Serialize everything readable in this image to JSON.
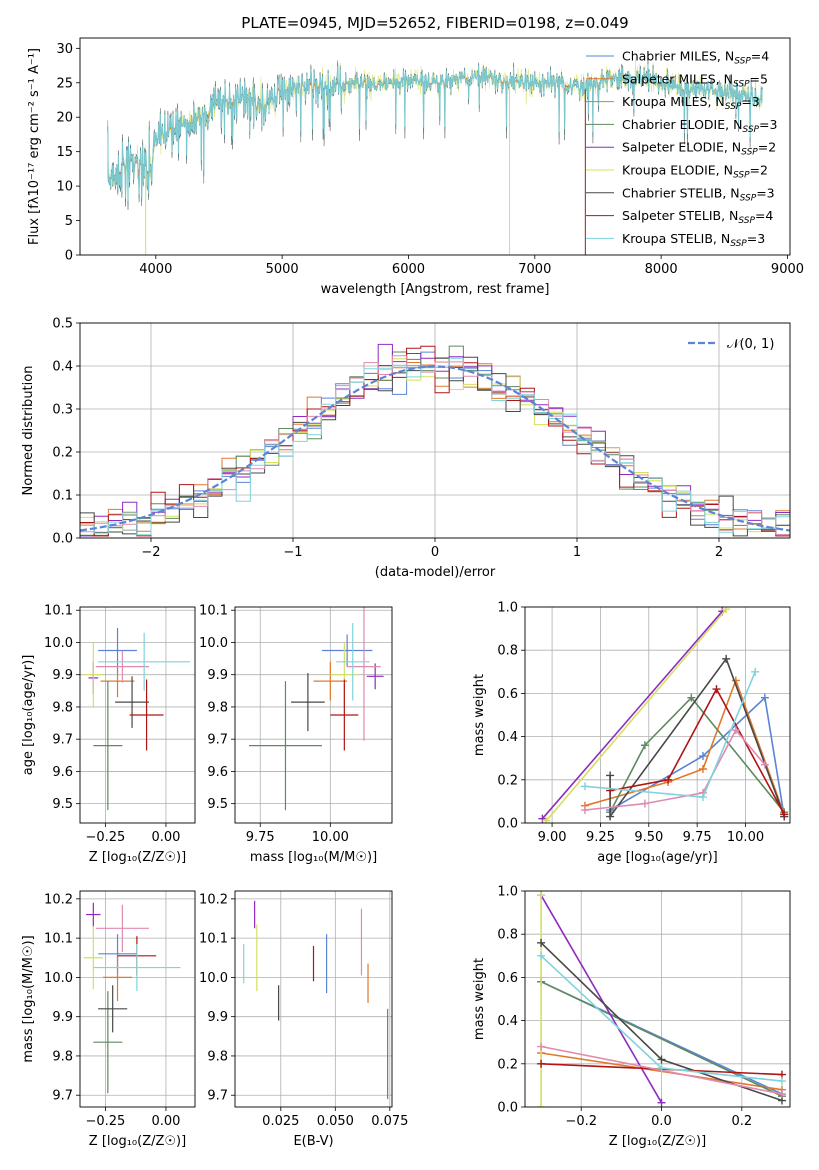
{
  "figure_title": "PLATE=0945, MJD=52652, FIBERID=0198, z=0.049",
  "colors": {
    "c0": "#5b84d6",
    "c1": "#e0792b",
    "c2": "#5f8a5f",
    "c3": "#8e2bc0",
    "c4": "#d4e060",
    "c5": "#484848",
    "c6": "#b01515",
    "c7": "#e08ab0",
    "c8": "#7fd3dc"
  },
  "chart_data": [
    {
      "id": "spectrum",
      "type": "line",
      "xlabel": "wavelength [Angstrom, rest frame]",
      "ylabel": "Flux [fλ10⁻¹⁷ erg cm⁻² s⁻¹ A⁻¹]",
      "xlim": [
        3400,
        9020
      ],
      "ylim": [
        0,
        31.5
      ],
      "xticks": [
        4000,
        5000,
        6000,
        7000,
        8000,
        9000
      ],
      "yticks": [
        0,
        5,
        10,
        15,
        20,
        25,
        30
      ],
      "grid": false,
      "legend_position": "top-right",
      "spectrum_anchors": {
        "x": [
          3620,
          3700,
          3800,
          3900,
          3960,
          4000,
          4100,
          4200,
          4300,
          4400,
          4500,
          4700,
          4860,
          5000,
          5200,
          5400,
          5600,
          5800,
          6000,
          6200,
          6400,
          6600,
          6800,
          7000,
          7200,
          7400,
          7600,
          7800,
          8000,
          8200,
          8400,
          8600,
          8800
        ],
        "y": [
          11,
          12,
          13.5,
          13,
          12,
          17,
          18,
          19,
          19.5,
          20.5,
          22,
          23,
          21,
          24,
          24.5,
          24.5,
          25,
          24.5,
          25.5,
          25,
          25.5,
          26,
          25,
          25,
          25,
          24,
          26,
          25.5,
          25,
          24,
          24,
          23.5,
          22.5
        ]
      },
      "series": [
        {
          "name": "Chabrier MILES, N_SSP=4",
          "label_main": "Chabrier MILES, N",
          "label_sub": "SSP",
          "label_tail": "=4",
          "color": "c0"
        },
        {
          "name": "Salpeter MILES, N_SSP=5",
          "label_main": "Salpeter MILES, N",
          "label_sub": "SSP",
          "label_tail": "=5",
          "color": "c1"
        },
        {
          "name": "Kroupa MILES, N_SSP=3",
          "label_main": "Kroupa MILES, N",
          "label_sub": "SSP",
          "label_tail": "=3",
          "color": "c1"
        },
        {
          "name": "Chabrier ELODIE, N_SSP=3",
          "label_main": "Chabrier ELODIE, N",
          "label_sub": "SSP",
          "label_tail": "=3",
          "color": "c2"
        },
        {
          "name": "Salpeter ELODIE, N_SSP=2",
          "label_main": "Salpeter ELODIE, N",
          "label_sub": "SSP",
          "label_tail": "=2",
          "color": "c3"
        },
        {
          "name": "Kroupa ELODIE, N_SSP=2",
          "label_main": "Kroupa ELODIE, N",
          "label_sub": "SSP",
          "label_tail": "=2",
          "color": "c4"
        },
        {
          "name": "Chabrier STELIB, N_SSP=3",
          "label_main": "Chabrier STELIB, N",
          "label_sub": "SSP",
          "label_tail": "=3",
          "color": "c5"
        },
        {
          "name": "Salpeter STELIB, N_SSP=4",
          "label_main": "Salpeter STELIB, N",
          "label_sub": "SSP",
          "label_tail": "=4",
          "color": "c6"
        },
        {
          "name": "Kroupa STELIB, N_SSP=3",
          "label_main": "Kroupa STELIB, N",
          "label_sub": "SSP",
          "label_tail": "=3",
          "color": "c8"
        }
      ],
      "cutoffs": [
        {
          "x": 3920,
          "color": "c4"
        },
        {
          "x": 6800,
          "color": "c4"
        },
        {
          "x": 7400,
          "color": "c6"
        }
      ]
    },
    {
      "id": "residuals",
      "type": "line",
      "xlabel": "(data-model)/error",
      "ylabel": "Normed distribution",
      "xlim": [
        -2.5,
        2.5
      ],
      "ylim": [
        0,
        0.5
      ],
      "xticks": [
        -2,
        -1,
        0,
        1,
        2
      ],
      "yticks": [
        0.0,
        0.1,
        0.2,
        0.3,
        0.4,
        0.5
      ],
      "grid": true,
      "legend_position": "top-right",
      "reference": {
        "name": "N(0,1)",
        "label": "𝒩(0, 1)",
        "color": "c0",
        "style": "dashed"
      },
      "bin_width": 0.1,
      "hist_colors": [
        "c0",
        "c1",
        "c2",
        "c3",
        "c4",
        "c5",
        "c6",
        "c7",
        "c8"
      ]
    },
    {
      "id": "age-vs-Z",
      "type": "scatter",
      "xlabel": "Z [log₁₀(Z/Z☉)]",
      "ylabel": "age  [log₁₀(age/yr)]",
      "xlim": [
        -0.355,
        0.12
      ],
      "ylim": [
        9.44,
        10.11
      ],
      "xticks": [
        -0.25,
        0.0
      ],
      "yticks": [
        9.5,
        9.6,
        9.7,
        9.8,
        9.9,
        10.0,
        10.1
      ],
      "grid": true,
      "points": [
        {
          "x": -0.2,
          "y": 9.975,
          "xerr": 0.08,
          "yerr": 0.07,
          "color": "c0"
        },
        {
          "x": -0.2,
          "y": 9.88,
          "xerr": 0.07,
          "yerr": 0.05,
          "color": "c1"
        },
        {
          "x": -0.24,
          "y": 9.68,
          "xerr": 0.06,
          "yerr": 0.2,
          "color": "c2"
        },
        {
          "x": -0.3,
          "y": 9.89,
          "xerr": 0.02,
          "yerr": 0.05,
          "color": "c3"
        },
        {
          "x": -0.3,
          "y": 9.9,
          "xerr": 0.04,
          "yerr": 0.1,
          "color": "c4"
        },
        {
          "x": -0.14,
          "y": 9.815,
          "xerr": 0.07,
          "yerr": 0.08,
          "color": "c5"
        },
        {
          "x": -0.08,
          "y": 9.775,
          "xerr": 0.07,
          "yerr": 0.11,
          "color": "c6"
        },
        {
          "x": -0.18,
          "y": 9.925,
          "xerr": 0.11,
          "yerr": 0.05,
          "color": "c7"
        },
        {
          "x": -0.09,
          "y": 9.94,
          "xerr": 0.19,
          "yerr": 0.09,
          "color": "c8"
        }
      ]
    },
    {
      "id": "age-vs-mass",
      "type": "scatter",
      "xlabel": "mass [log₁₀(M/M☉)]",
      "ylabel": "",
      "xlim": [
        9.66,
        10.22
      ],
      "ylim": [
        9.44,
        10.11
      ],
      "xticks": [
        9.75,
        10.0
      ],
      "yticks": [
        9.5,
        9.6,
        9.7,
        9.8,
        9.9,
        10.0,
        10.1
      ],
      "grid": true,
      "points": [
        {
          "x": 10.06,
          "y": 9.975,
          "xerr": 0.09,
          "yerr": 0.05,
          "color": "c0"
        },
        {
          "x": 10.0,
          "y": 9.88,
          "xerr": 0.06,
          "yerr": 0.06,
          "color": "c1"
        },
        {
          "x": 9.84,
          "y": 9.68,
          "xerr": 0.13,
          "yerr": 0.2,
          "color": "c2"
        },
        {
          "x": 10.16,
          "y": 9.895,
          "xerr": 0.03,
          "yerr": 0.04,
          "color": "c3"
        },
        {
          "x": 10.05,
          "y": 9.9,
          "xerr": 0.05,
          "yerr": 0.1,
          "color": "c4"
        },
        {
          "x": 9.92,
          "y": 9.815,
          "xerr": 0.06,
          "yerr": 0.09,
          "color": "c5"
        },
        {
          "x": 10.05,
          "y": 9.775,
          "xerr": 0.05,
          "yerr": 0.11,
          "color": "c6"
        },
        {
          "x": 10.12,
          "y": 9.925,
          "xerr": 0.06,
          "yerr": 0.23,
          "color": "c7"
        },
        {
          "x": 10.08,
          "y": 9.94,
          "xerr": 0.06,
          "yerr": 0.12,
          "color": "c8"
        }
      ]
    },
    {
      "id": "weight-vs-age",
      "type": "line",
      "xlabel": "age  [log₁₀(age/yr)]",
      "ylabel": "mass weight",
      "xlim": [
        8.86,
        10.23
      ],
      "ylim": [
        0,
        1.0
      ],
      "xticks": [
        9.0,
        9.25,
        9.5,
        9.75,
        10.0
      ],
      "yticks": [
        0.0,
        0.2,
        0.4,
        0.6,
        0.8,
        1.0
      ],
      "grid": true,
      "series": [
        {
          "color": "c0",
          "x": [
            9.3,
            9.78,
            10.1,
            10.2
          ],
          "y": [
            0.06,
            0.31,
            0.58,
            0.03
          ]
        },
        {
          "color": "c1",
          "x": [
            9.17,
            9.6,
            9.78,
            9.95,
            10.2
          ],
          "y": [
            0.08,
            0.19,
            0.25,
            0.66,
            0.04
          ]
        },
        {
          "color": "c2",
          "x": [
            9.3,
            9.48,
            9.72,
            10.2
          ],
          "y": [
            0.05,
            0.36,
            0.58,
            0.05
          ]
        },
        {
          "color": "c3",
          "x": [
            8.95,
            9.88
          ],
          "y": [
            0.02,
            0.98
          ]
        },
        {
          "color": "c4",
          "x": [
            8.97,
            9.9
          ],
          "y": [
            0.01,
            0.99
          ]
        },
        {
          "color": "c5",
          "x": [
            9.3,
            9.3,
            9.9,
            10.2
          ],
          "y": [
            0.22,
            0.03,
            0.76,
            0.03
          ]
        },
        {
          "color": "c6",
          "x": [
            9.3,
            9.6,
            9.85,
            10.2
          ],
          "y": [
            0.15,
            0.2,
            0.62,
            0.04
          ]
        },
        {
          "color": "c7",
          "x": [
            9.17,
            9.48,
            9.78,
            9.95,
            10.1
          ],
          "y": [
            0.06,
            0.09,
            0.14,
            0.43,
            0.27
          ]
        },
        {
          "color": "c8",
          "x": [
            9.17,
            9.78,
            10.05
          ],
          "y": [
            0.17,
            0.12,
            0.7
          ]
        }
      ]
    },
    {
      "id": "mass-vs-Z",
      "type": "scatter",
      "xlabel": "Z [log₁₀(Z/Z☉)]",
      "ylabel": "mass [log₁₀(M/M☉)]",
      "xlim": [
        -0.355,
        0.12
      ],
      "ylim": [
        9.67,
        10.22
      ],
      "xticks": [
        -0.25,
        0.0
      ],
      "yticks": [
        9.7,
        9.8,
        9.9,
        10.0,
        10.1,
        10.2
      ],
      "grid": true,
      "points": [
        {
          "x": -0.2,
          "y": 10.06,
          "xerr": 0.08,
          "yerr": 0.05,
          "color": "c0"
        },
        {
          "x": -0.2,
          "y": 10.0,
          "xerr": 0.06,
          "yerr": 0.06,
          "color": "c1"
        },
        {
          "x": -0.24,
          "y": 9.835,
          "xerr": 0.06,
          "yerr": 0.13,
          "color": "c2"
        },
        {
          "x": -0.3,
          "y": 10.16,
          "xerr": 0.03,
          "yerr": 0.03,
          "color": "c3"
        },
        {
          "x": -0.3,
          "y": 10.05,
          "xerr": 0.04,
          "yerr": 0.08,
          "color": "c4"
        },
        {
          "x": -0.22,
          "y": 9.92,
          "xerr": 0.06,
          "yerr": 0.06,
          "color": "c5"
        },
        {
          "x": -0.12,
          "y": 10.055,
          "xerr": 0.08,
          "yerr": 0.05,
          "color": "c6"
        },
        {
          "x": -0.18,
          "y": 10.125,
          "xerr": 0.11,
          "yerr": 0.06,
          "color": "c7"
        },
        {
          "x": -0.12,
          "y": 10.025,
          "xerr": 0.18,
          "yerr": 0.06,
          "color": "c8"
        }
      ]
    },
    {
      "id": "mass-vs-ebv",
      "type": "scatter",
      "xlabel": "E(B-V)",
      "ylabel": "",
      "xlim": [
        0.004,
        0.076
      ],
      "ylim": [
        9.67,
        10.22
      ],
      "xticks": [
        0.025,
        0.05,
        0.075
      ],
      "xtick_labels": [
        "0.025",
        "0.050",
        "0.075"
      ],
      "yticks": [
        9.7,
        9.8,
        9.9,
        10.0,
        10.1,
        10.2
      ],
      "grid": true,
      "points": [
        {
          "x": 0.046,
          "y": 10.035,
          "yerr": 0.075,
          "color": "c0"
        },
        {
          "x": 0.065,
          "y": 9.985,
          "yerr": 0.05,
          "color": "c1"
        },
        {
          "x": 0.074,
          "y": 9.805,
          "yerr": 0.115,
          "color": "c2"
        },
        {
          "x": 0.013,
          "y": 10.16,
          "yerr": 0.035,
          "color": "c3"
        },
        {
          "x": 0.014,
          "y": 10.05,
          "yerr": 0.085,
          "color": "c4"
        },
        {
          "x": 0.024,
          "y": 9.935,
          "yerr": 0.045,
          "color": "c5"
        },
        {
          "x": 0.04,
          "y": 10.035,
          "yerr": 0.045,
          "color": "c6"
        },
        {
          "x": 0.062,
          "y": 10.09,
          "yerr": 0.085,
          "color": "c7"
        },
        {
          "x": 0.008,
          "y": 10.035,
          "yerr": 0.05,
          "color": "c8"
        }
      ]
    },
    {
      "id": "weight-vs-Z",
      "type": "line",
      "xlabel": "Z [log₁₀(Z/Z☉)]",
      "ylabel": "mass weight",
      "xlim": [
        -0.34,
        0.32
      ],
      "ylim": [
        0,
        1.0
      ],
      "xticks": [
        -0.2,
        0.0,
        0.2
      ],
      "yticks": [
        0.0,
        0.2,
        0.4,
        0.6,
        0.8,
        1.0
      ],
      "grid": true,
      "series": [
        {
          "color": "c0",
          "x": [
            -0.3,
            0.3
          ],
          "y": [
            0.58,
            0.06
          ]
        },
        {
          "color": "c1",
          "x": [
            -0.3,
            0.3
          ],
          "y": [
            0.25,
            0.08
          ]
        },
        {
          "color": "c2",
          "x": [
            -0.3,
            0.3
          ],
          "y": [
            0.58,
            0.05
          ]
        },
        {
          "color": "c3",
          "x": [
            -0.3,
            0.0
          ],
          "y": [
            0.98,
            0.02
          ]
        },
        {
          "color": "c4",
          "x": [
            -0.3,
            -0.3
          ],
          "y": [
            0.98,
            0.0
          ]
        },
        {
          "color": "c5",
          "x": [
            -0.3,
            0.0,
            0.3
          ],
          "y": [
            0.76,
            0.22,
            0.03
          ]
        },
        {
          "color": "c6",
          "x": [
            -0.3,
            0.3
          ],
          "y": [
            0.2,
            0.15
          ]
        },
        {
          "color": "c7",
          "x": [
            -0.3,
            0.3
          ],
          "y": [
            0.28,
            0.06
          ]
        },
        {
          "color": "c8",
          "x": [
            -0.3,
            0.0,
            0.3
          ],
          "y": [
            0.7,
            0.18,
            0.12
          ]
        }
      ]
    }
  ]
}
